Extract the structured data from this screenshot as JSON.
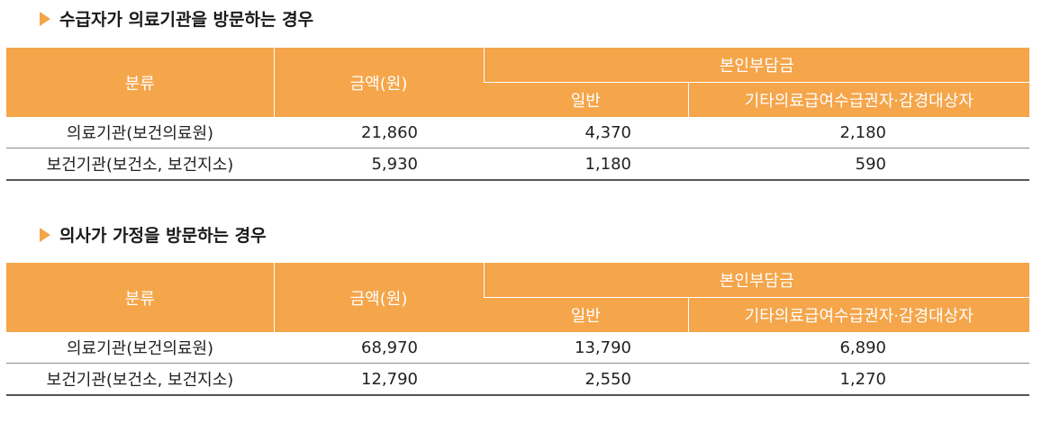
{
  "sections": [
    {
      "title": "수급자가 의료기관을 방문하는 경우",
      "headers": {
        "category": "분류",
        "amount": "금액(원)",
        "copay": "본인부담금",
        "general": "일반",
        "other": "기타의료급여수급권자·감경대상자"
      },
      "rows": [
        {
          "category": "의료기관(보건의료원)",
          "amount": "21,860",
          "general": "4,370",
          "other": "2,180"
        },
        {
          "category": "보건기관(보건소, 보건지소)",
          "amount": "5,930",
          "general": "1,180",
          "other": "590"
        }
      ]
    },
    {
      "title": "의사가 가정을 방문하는 경우",
      "headers": {
        "category": "분류",
        "amount": "금액(원)",
        "copay": "본인부담금",
        "general": "일반",
        "other": "기타의료급여수급권자·감경대상자"
      },
      "rows": [
        {
          "category": "의료기관(보건의료원)",
          "amount": "68,970",
          "general": "13,790",
          "other": "6,890"
        },
        {
          "category": "보건기관(보건소, 보건지소)",
          "amount": "12,790",
          "general": "2,550",
          "other": "1,270"
        }
      ]
    }
  ],
  "colors": {
    "accent": "#f5a54a",
    "header_text": "#ffffff"
  },
  "icons": {
    "section_marker": "triangle-right-icon"
  }
}
